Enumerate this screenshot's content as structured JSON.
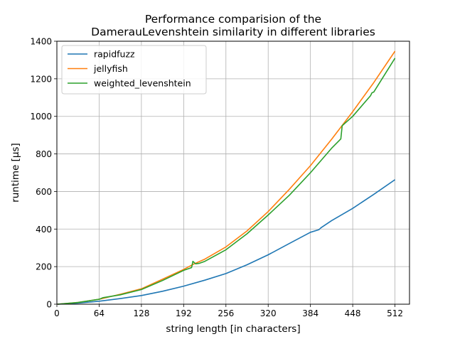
{
  "chart_data": {
    "type": "line",
    "title_line1": "Performance comparision of the",
    "title_line2": "DamerauLevenshtein similarity in different libraries",
    "xlabel": "string length [in characters]",
    "ylabel": "runtime [µs]",
    "xlim": [
      0,
      534
    ],
    "ylim": [
      0,
      1400
    ],
    "xticks": [
      0,
      64,
      128,
      192,
      256,
      320,
      384,
      448,
      512
    ],
    "yticks": [
      0,
      200,
      400,
      600,
      800,
      1000,
      1200,
      1400
    ],
    "grid": true,
    "legend_position": "upper-left",
    "series": [
      {
        "name": "rapidfuzz",
        "color": "#1f77b4",
        "x": [
          1,
          32,
          64,
          96,
          128,
          160,
          192,
          224,
          256,
          288,
          320,
          352,
          384,
          397,
          400,
          416,
          448,
          480,
          512
        ],
        "y": [
          0,
          6,
          16,
          30,
          46,
          69,
          96,
          128,
          163,
          210,
          263,
          323,
          383,
          397,
          407,
          445,
          510,
          585,
          663
        ]
      },
      {
        "name": "jellyfish",
        "color": "#ff7f0e",
        "x": [
          1,
          32,
          64,
          96,
          128,
          160,
          192,
          208,
          224,
          256,
          288,
          320,
          352,
          384,
          416,
          448,
          480,
          512
        ],
        "y": [
          0,
          9,
          26,
          53,
          82,
          133,
          185,
          215,
          240,
          305,
          390,
          493,
          612,
          738,
          878,
          1025,
          1180,
          1347
        ]
      },
      {
        "name": "weighted_levenshtein",
        "color": "#2ca02c",
        "x": [
          1,
          32,
          64,
          70,
          96,
          128,
          160,
          192,
          204,
          206,
          210,
          216,
          224,
          256,
          288,
          320,
          352,
          384,
          416,
          430,
          432,
          448,
          475,
          477,
          480,
          512
        ],
        "y": [
          0,
          9,
          26,
          35,
          50,
          78,
          126,
          180,
          195,
          228,
          215,
          218,
          228,
          290,
          375,
          475,
          580,
          700,
          830,
          880,
          950,
          1000,
          1110,
          1125,
          1130,
          1310
        ]
      }
    ]
  }
}
